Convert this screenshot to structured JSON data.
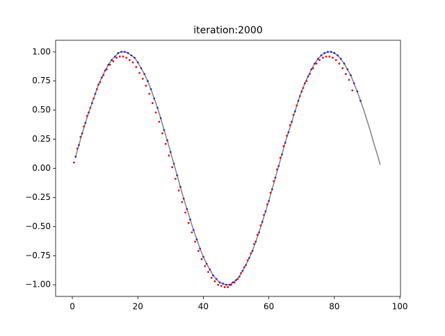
{
  "chart_data": {
    "type": "scatter",
    "title": "iteration:2000",
    "xlim": [
      -5.1,
      100.2
    ],
    "xticks": [
      0,
      20,
      40,
      60,
      80,
      100
    ],
    "ylim": [
      -1.1,
      1.1
    ],
    "yticks": [
      {
        "value": -1,
        "label": "−1.00"
      },
      {
        "value": -0.75,
        "label": "−0.75"
      },
      {
        "value": -0.5,
        "label": "−0.50"
      },
      {
        "value": -0.25,
        "label": "−0.25"
      },
      {
        "value": 0,
        "label": "0.00"
      },
      {
        "value": 0.25,
        "label": "0.25"
      },
      {
        "value": 0.5,
        "label": "0.50"
      },
      {
        "value": 0.75,
        "label": "0.75"
      },
      {
        "value": 1,
        "label": "1.00"
      }
    ],
    "series": [
      {
        "mode": "line",
        "color": "#808080",
        "x": [
          1,
          2,
          3,
          4,
          5,
          6,
          7,
          8,
          9,
          10,
          11,
          12,
          13,
          14,
          15,
          16,
          17,
          18,
          19,
          20,
          21,
          22,
          23,
          24,
          25,
          26,
          27,
          28,
          29,
          30,
          31,
          32,
          33,
          34,
          35,
          36,
          37,
          38,
          39,
          40,
          41,
          42,
          43,
          44,
          45,
          46,
          47,
          48,
          49,
          50,
          51,
          52,
          53,
          54,
          55,
          56,
          57,
          58,
          59,
          60,
          61,
          62,
          63,
          64,
          65,
          66,
          67,
          68,
          69,
          70,
          71,
          72,
          73,
          74,
          75,
          76,
          77,
          78,
          79,
          80,
          81,
          82,
          83,
          84,
          85,
          86,
          87,
          88,
          89,
          90,
          91,
          92,
          93,
          94
        ],
        "values": [
          0.1,
          0.2,
          0.3,
          0.39,
          0.48,
          0.56,
          0.64,
          0.72,
          0.78,
          0.84,
          0.89,
          0.93,
          0.96,
          0.99,
          1.0,
          1.0,
          0.99,
          0.97,
          0.95,
          0.91,
          0.86,
          0.81,
          0.75,
          0.68,
          0.6,
          0.52,
          0.43,
          0.33,
          0.24,
          0.14,
          0.04,
          -0.06,
          -0.16,
          -0.26,
          -0.35,
          -0.44,
          -0.53,
          -0.61,
          -0.69,
          -0.76,
          -0.82,
          -0.87,
          -0.92,
          -0.95,
          -0.98,
          -0.99,
          -1.0,
          -1.0,
          -0.98,
          -0.96,
          -0.93,
          -0.88,
          -0.83,
          -0.77,
          -0.71,
          -0.63,
          -0.55,
          -0.46,
          -0.37,
          -0.28,
          -0.18,
          -0.08,
          0.02,
          0.12,
          0.22,
          0.31,
          0.4,
          0.49,
          0.58,
          0.66,
          0.73,
          0.79,
          0.85,
          0.9,
          0.94,
          0.97,
          0.99,
          1.0,
          1.0,
          0.99,
          0.97,
          0.94,
          0.9,
          0.85,
          0.8,
          0.73,
          0.66,
          0.58,
          0.5,
          0.41,
          0.32,
          0.22,
          0.13,
          0.03
        ]
      },
      {
        "mode": "points",
        "color": "#2a2ad0",
        "x": [
          1,
          2,
          3,
          4,
          5,
          6,
          7,
          8,
          9,
          10,
          11,
          12,
          13,
          14,
          15,
          16,
          17,
          18,
          19,
          20,
          21,
          22,
          23,
          24,
          25,
          26,
          27,
          28,
          29,
          30,
          31,
          32,
          33,
          34,
          35,
          36,
          37,
          38,
          39,
          40,
          41,
          42,
          43,
          44,
          45,
          46,
          47,
          48,
          49,
          50,
          51,
          52,
          53,
          54,
          55,
          56,
          57,
          58,
          59,
          60,
          61,
          62,
          63,
          64,
          65,
          66,
          67,
          68,
          69,
          70,
          71,
          72,
          73,
          74,
          75,
          76,
          77,
          78,
          79,
          80,
          81,
          82,
          83,
          84,
          85,
          86,
          87,
          88
        ],
        "values": [
          0.1,
          0.2,
          0.3,
          0.39,
          0.48,
          0.56,
          0.64,
          0.72,
          0.78,
          0.84,
          0.89,
          0.93,
          0.96,
          0.99,
          1.0,
          1.0,
          0.99,
          0.97,
          0.95,
          0.91,
          0.86,
          0.81,
          0.75,
          0.68,
          0.6,
          0.52,
          0.43,
          0.33,
          0.24,
          0.14,
          0.04,
          -0.06,
          -0.16,
          -0.26,
          -0.35,
          -0.44,
          -0.53,
          -0.61,
          -0.69,
          -0.76,
          -0.82,
          -0.87,
          -0.92,
          -0.95,
          -0.98,
          -0.99,
          -1.0,
          -1.0,
          -0.98,
          -0.96,
          -0.93,
          -0.88,
          -0.83,
          -0.77,
          -0.71,
          -0.63,
          -0.55,
          -0.46,
          -0.37,
          -0.28,
          -0.18,
          -0.08,
          0.02,
          0.12,
          0.22,
          0.31,
          0.4,
          0.49,
          0.58,
          0.66,
          0.73,
          0.79,
          0.85,
          0.9,
          0.94,
          0.97,
          0.99,
          1.0,
          1.0,
          0.99,
          0.97,
          0.94,
          0.9,
          0.85,
          0.8,
          0.73,
          0.66,
          0.58
        ]
      },
      {
        "mode": "points",
        "color": "#ff0000",
        "x": [
          0.5,
          1.5,
          2.5,
          3.5,
          4.5,
          5.5,
          6.5,
          7.5,
          8.5,
          9.5,
          10.5,
          11.5,
          12.5,
          13.5,
          14.5,
          15.5,
          16.5,
          17.5,
          18.5,
          19.5,
          20.5,
          21.5,
          22.5,
          23.5,
          24.5,
          25.5,
          26.5,
          27.5,
          28.5,
          29.5,
          30.5,
          31.5,
          32.5,
          33.5,
          34.5,
          35.5,
          36.5,
          37.5,
          38.5,
          39.5,
          40.5,
          41.5,
          42.5,
          43.5,
          44.5,
          45.5,
          46.5,
          47.5,
          48.5,
          49.5,
          50.5,
          51.5,
          52.5,
          53.5,
          54.5,
          55.5,
          56.5,
          57.5,
          58.5,
          59.5,
          60.5,
          61.5,
          62.5,
          63.5,
          64.5,
          65.5,
          66.5,
          67.5,
          68.5,
          69.5,
          70.5,
          71.5,
          72.5,
          73.5,
          74.5,
          75.5,
          76.5,
          77.5,
          78.5,
          79.5,
          80.5,
          81.5,
          82.5,
          83.5,
          84.5,
          85.5
        ],
        "values": [
          0.05,
          0.17,
          0.27,
          0.36,
          0.45,
          0.52,
          0.6,
          0.68,
          0.74,
          0.8,
          0.85,
          0.89,
          0.92,
          0.95,
          0.96,
          0.96,
          0.95,
          0.93,
          0.91,
          0.87,
          0.82,
          0.77,
          0.71,
          0.64,
          0.56,
          0.48,
          0.4,
          0.3,
          0.21,
          0.11,
          0.01,
          -0.09,
          -0.19,
          -0.29,
          -0.38,
          -0.47,
          -0.55,
          -0.63,
          -0.71,
          -0.78,
          -0.84,
          -0.89,
          -0.94,
          -0.97,
          -1.0,
          -1.01,
          -1.02,
          -1.02,
          -1.0,
          -0.98,
          -0.95,
          -0.9,
          -0.85,
          -0.79,
          -0.73,
          -0.65,
          -0.57,
          -0.49,
          -0.4,
          -0.31,
          -0.21,
          -0.11,
          -0.01,
          0.09,
          0.19,
          0.28,
          0.37,
          0.46,
          0.54,
          0.62,
          0.69,
          0.75,
          0.81,
          0.86,
          0.9,
          0.93,
          0.95,
          0.96,
          0.96,
          0.95,
          0.93,
          0.9,
          0.86,
          0.81,
          0.76,
          0.67
        ]
      }
    ]
  }
}
